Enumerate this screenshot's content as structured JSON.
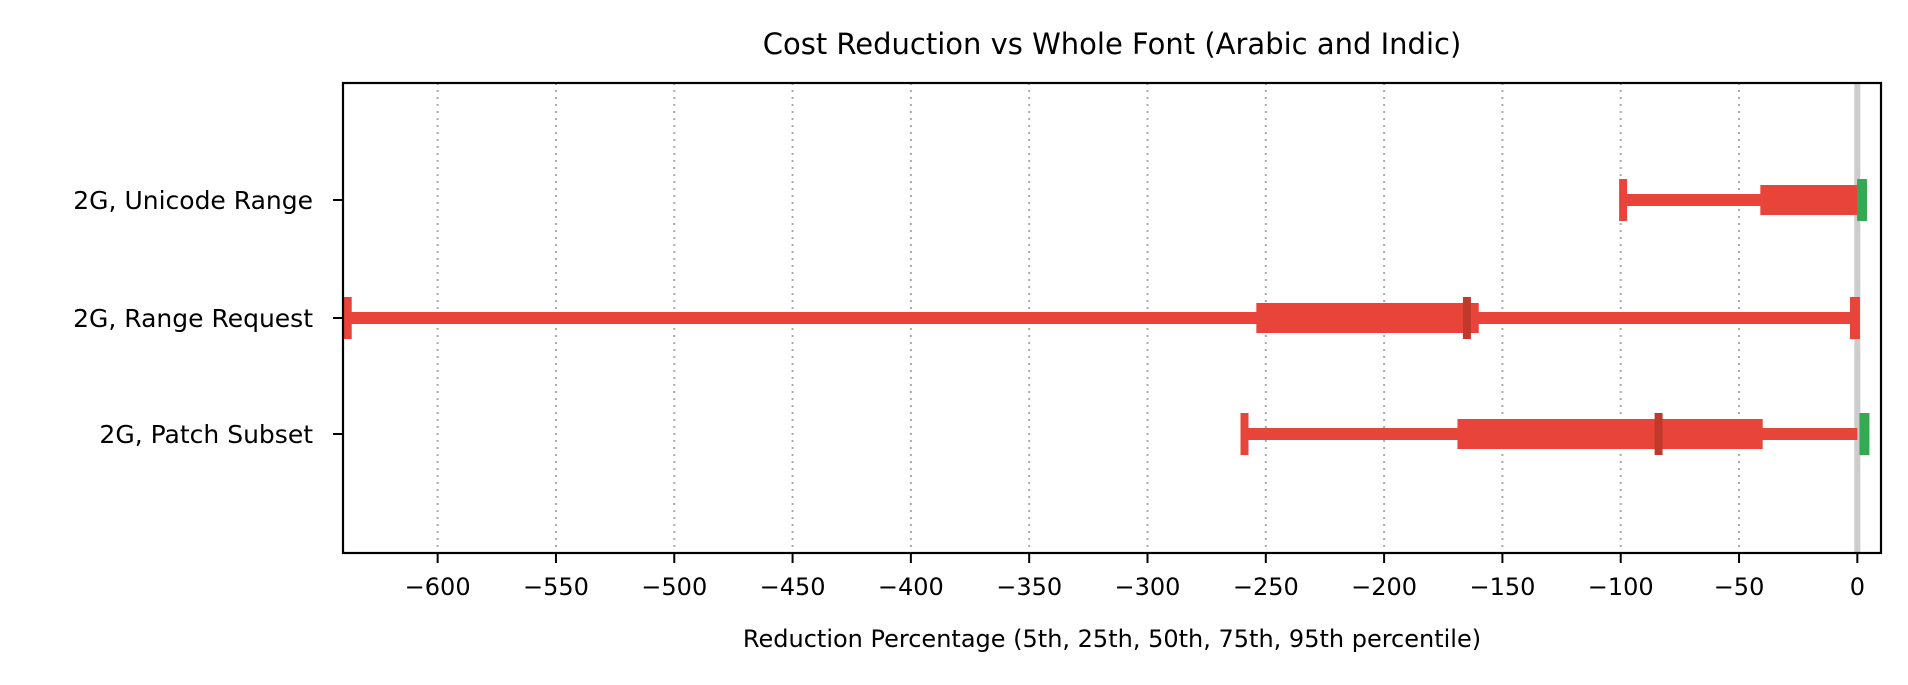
{
  "chart_data": {
    "type": "box-range",
    "title": "Cost Reduction vs Whole Font (Arabic and Indic)",
    "xlabel": "Reduction Percentage (5th, 25th, 50th, 75th, 95th percentile)",
    "ylabel": "",
    "xlim": [
      -640,
      10
    ],
    "xticks": [
      -600,
      -550,
      -500,
      -450,
      -400,
      -350,
      -300,
      -250,
      -200,
      -150,
      -100,
      -50,
      0
    ],
    "xtick_labels": [
      "−600",
      "−550",
      "−500",
      "−450",
      "−400",
      "−350",
      "−300",
      "−250",
      "−200",
      "−150",
      "−100",
      "−50",
      "0"
    ],
    "grid": "vertical dotted",
    "reference_line": 0,
    "colors": {
      "negative": "#e8443a",
      "median_marker": "#c0392b",
      "positive": "#34a853",
      "grid": "#aaaaaa",
      "zero_line": "#cccccc"
    },
    "series": [
      {
        "label": "2G, Unicode Range",
        "p5": -99,
        "p25": -41,
        "p50": 0,
        "p75": 0,
        "p95": 2
      },
      {
        "label": "2G, Range Request",
        "p5": -638,
        "p25": -254,
        "p50": -165,
        "p75": -160,
        "p95": -1
      },
      {
        "label": "2G, Patch Subset",
        "p5": -259,
        "p25": -169,
        "p50": -84,
        "p75": -40,
        "p95": 3
      }
    ]
  }
}
